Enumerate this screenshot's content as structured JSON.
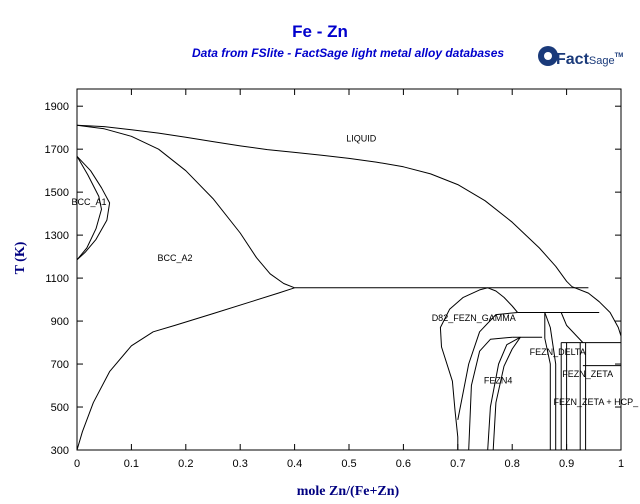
{
  "chart_data": {
    "type": "line",
    "title": "Fe - Zn",
    "subtitle": "Data from FSlite - FactSage light metal alloy databases",
    "xlabel": "mole Zn/(Fe+Zn)",
    "ylabel": "T (K)",
    "xlim": [
      0,
      1
    ],
    "ylim": [
      300,
      1980
    ],
    "xticks": [
      0,
      0.1,
      0.2,
      0.3,
      0.4,
      0.5,
      0.6,
      0.7,
      0.8,
      0.9,
      1
    ],
    "xtick_labels": [
      "0",
      "0.1",
      "0.2",
      "0.3",
      "0.4",
      "0.5",
      "0.6",
      "0.7",
      "0.8",
      "0.9",
      "1"
    ],
    "yticks": [
      300,
      500,
      700,
      900,
      1100,
      1300,
      1500,
      1700,
      1900
    ],
    "ytick_labels": [
      "300",
      "500",
      "700",
      "900",
      "1100",
      "1300",
      "1500",
      "1700",
      "1900"
    ],
    "colors": {
      "title": "#0000cc",
      "subtitle": "#0000cc",
      "axis_label": "#000080",
      "lines": "#000000",
      "logo": "#1a3a7a"
    },
    "phase_labels": [
      {
        "text": "LIQUID",
        "x": 0.495,
        "y": 1735
      },
      {
        "text": "BCC_A1",
        "x": -0.01,
        "y": 1440
      },
      {
        "text": "BCC_A2",
        "x": 0.148,
        "y": 1180
      },
      {
        "text": "D82_FEZN_GAMMA",
        "x": 0.652,
        "y": 900
      },
      {
        "text": "FEZN_DELTA",
        "x": 0.832,
        "y": 743
      },
      {
        "text": "FEZN4",
        "x": 0.748,
        "y": 610
      },
      {
        "text": "FEZN_ZETA",
        "x": 0.892,
        "y": 640
      },
      {
        "text": "FEZN_ZETA + HCP_",
        "x": 0.876,
        "y": 510
      }
    ],
    "boundaries": [
      {
        "name": "liquidus",
        "points": [
          [
            0,
            1811
          ],
          [
            0.05,
            1805
          ],
          [
            0.1,
            1790
          ],
          [
            0.15,
            1775
          ],
          [
            0.2,
            1755
          ],
          [
            0.25,
            1735
          ],
          [
            0.3,
            1715
          ],
          [
            0.35,
            1698
          ],
          [
            0.4,
            1685
          ],
          [
            0.45,
            1672
          ],
          [
            0.5,
            1657
          ],
          [
            0.55,
            1640
          ],
          [
            0.6,
            1618
          ],
          [
            0.65,
            1585
          ],
          [
            0.7,
            1535
          ],
          [
            0.75,
            1460
          ],
          [
            0.8,
            1360
          ],
          [
            0.85,
            1240
          ],
          [
            0.88,
            1155
          ],
          [
            0.9,
            1085
          ],
          [
            0.91,
            1060
          ]
        ]
      },
      {
        "name": "bcc-solidus",
        "points": [
          [
            0,
            1811
          ],
          [
            0.05,
            1795
          ],
          [
            0.1,
            1760
          ],
          [
            0.15,
            1700
          ],
          [
            0.2,
            1600
          ],
          [
            0.25,
            1470
          ],
          [
            0.3,
            1310
          ],
          [
            0.33,
            1195
          ],
          [
            0.355,
            1120
          ],
          [
            0.38,
            1075
          ],
          [
            0.4,
            1055
          ]
        ]
      },
      {
        "name": "peritectic-line",
        "points": [
          [
            0.4,
            1055
          ],
          [
            0.94,
            1055
          ]
        ]
      },
      {
        "name": "bcc-solvus",
        "points": [
          [
            0,
            300
          ],
          [
            0.01,
            385
          ],
          [
            0.03,
            520
          ],
          [
            0.06,
            665
          ],
          [
            0.1,
            785
          ],
          [
            0.14,
            850
          ],
          [
            0.18,
            880
          ],
          [
            0.25,
            935
          ],
          [
            0.32,
            990
          ],
          [
            0.37,
            1030
          ],
          [
            0.4,
            1055
          ]
        ]
      },
      {
        "name": "gamma-loop-outer",
        "points": [
          [
            0,
            1667
          ],
          [
            0.025,
            1600
          ],
          [
            0.045,
            1520
          ],
          [
            0.06,
            1450
          ],
          [
            0.055,
            1370
          ],
          [
            0.035,
            1280
          ],
          [
            0.015,
            1220
          ],
          [
            0,
            1185
          ]
        ]
      },
      {
        "name": "gamma-loop-inner",
        "points": [
          [
            0,
            1667
          ],
          [
            0.02,
            1580
          ],
          [
            0.04,
            1480
          ],
          [
            0.045,
            1420
          ],
          [
            0.035,
            1330
          ],
          [
            0.018,
            1240
          ],
          [
            0,
            1185
          ]
        ]
      },
      {
        "name": "gamma-left",
        "points": [
          [
            0.7,
            300
          ],
          [
            0.7,
            360
          ],
          [
            0.695,
            480
          ],
          [
            0.69,
            620
          ],
          [
            0.67,
            780
          ],
          [
            0.668,
            870
          ],
          [
            0.685,
            955
          ],
          [
            0.71,
            1010
          ],
          [
            0.74,
            1045
          ],
          [
            0.755,
            1055
          ]
        ]
      },
      {
        "name": "gamma-right",
        "points": [
          [
            0.755,
            1055
          ],
          [
            0.77,
            1040
          ],
          [
            0.785,
            1010
          ],
          [
            0.8,
            970
          ],
          [
            0.81,
            940
          ]
        ]
      },
      {
        "name": "gamma-inner-left",
        "points": [
          [
            0.7,
            440
          ],
          [
            0.72,
            700
          ],
          [
            0.74,
            850
          ],
          [
            0.77,
            930
          ],
          [
            0.81,
            940
          ]
        ]
      },
      {
        "name": "gamma-delta-1",
        "points": [
          [
            0.72,
            300
          ],
          [
            0.725,
            600
          ],
          [
            0.74,
            760
          ],
          [
            0.76,
            815
          ],
          [
            0.8,
            825
          ]
        ]
      },
      {
        "name": "gamma-delta-2",
        "points": [
          [
            0.755,
            300
          ],
          [
            0.76,
            500
          ],
          [
            0.775,
            700
          ],
          [
            0.79,
            790
          ],
          [
            0.815,
            825
          ]
        ]
      },
      {
        "name": "fezn4-right",
        "points": [
          [
            0.765,
            300
          ],
          [
            0.77,
            520
          ],
          [
            0.785,
            690
          ],
          [
            0.8,
            770
          ],
          [
            0.815,
            825
          ]
        ]
      },
      {
        "name": "gamma-top-820",
        "points": [
          [
            0.8,
            825
          ],
          [
            0.855,
            825
          ]
        ]
      },
      {
        "name": "delta-940",
        "points": [
          [
            0.81,
            940
          ],
          [
            0.96,
            940
          ]
        ]
      },
      {
        "name": "delta-left",
        "points": [
          [
            0.86,
            940
          ],
          [
            0.86,
            820
          ],
          [
            0.87,
            700
          ],
          [
            0.87,
            300
          ]
        ]
      },
      {
        "name": "delta-left-2",
        "points": [
          [
            0.86,
            940
          ],
          [
            0.87,
            870
          ],
          [
            0.88,
            700
          ],
          [
            0.88,
            300
          ]
        ]
      },
      {
        "name": "delta-zeta-1",
        "points": [
          [
            0.89,
            800
          ],
          [
            0.89,
            300
          ]
        ]
      },
      {
        "name": "delta-zeta-2",
        "points": [
          [
            0.9,
            800
          ],
          [
            0.9,
            300
          ]
        ]
      },
      {
        "name": "zeta-top-800",
        "points": [
          [
            0.89,
            800
          ],
          [
            0.93,
            800
          ]
        ]
      },
      {
        "name": "delta-liquid",
        "points": [
          [
            0.89,
            940
          ],
          [
            0.9,
            880
          ],
          [
            0.93,
            800
          ]
        ]
      },
      {
        "name": "zeta-left",
        "points": [
          [
            0.925,
            800
          ],
          [
            0.925,
            300
          ]
        ]
      },
      {
        "name": "zeta-right",
        "points": [
          [
            0.935,
            800
          ],
          [
            0.935,
            300
          ]
        ]
      },
      {
        "name": "zeta-peritectic-line",
        "points": [
          [
            0.93,
            800
          ],
          [
            1,
            800
          ]
        ]
      },
      {
        "name": "eutectic-693",
        "points": [
          [
            0.93,
            693
          ],
          [
            1,
            693
          ]
        ]
      },
      {
        "name": "liquidus-zn",
        "points": [
          [
            0.91,
            1060
          ],
          [
            0.94,
            1030
          ],
          [
            0.96,
            990
          ],
          [
            0.98,
            940
          ],
          [
            0.995,
            870
          ],
          [
            1,
            830
          ]
        ]
      }
    ]
  },
  "logo": {
    "brand": "FactSage",
    "brand_a": "Fact",
    "brand_b": "Sage",
    "tm": "TM"
  }
}
